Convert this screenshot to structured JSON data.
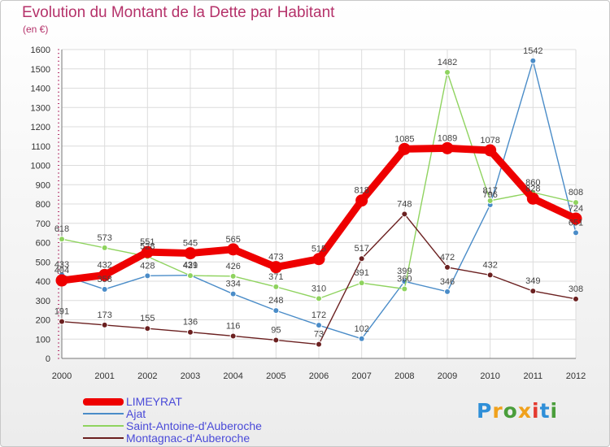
{
  "header": {
    "title": "Evolution du Montant de la Dette par Habitant",
    "subtitle": "(en €)"
  },
  "logo": {
    "text": "Proxiti",
    "colors": [
      "#2f8fd8",
      "#f0a11c",
      "#4a9e3b",
      "#f0a11c",
      "#e43a2f",
      "#2f8fd8",
      "#4a9e3b"
    ]
  },
  "chart_data": {
    "type": "line",
    "title": "Evolution du Montant de la Dette par Habitant",
    "ylabel": "(en €)",
    "x": [
      "2000",
      "2001",
      "2002",
      "2003",
      "2004",
      "2005",
      "2006",
      "2007",
      "2008",
      "2009",
      "2010",
      "2011",
      "2012"
    ],
    "ylim": [
      0,
      1600
    ],
    "yticks": [
      0,
      100,
      200,
      300,
      400,
      500,
      600,
      700,
      800,
      900,
      1000,
      1100,
      1200,
      1300,
      1400,
      1500,
      1600
    ],
    "grid": true,
    "legend_position": "bottom-left",
    "series": [
      {
        "name": "LIMEYRAT",
        "color": "#ee0000",
        "emphasis": true,
        "values": [
          404,
          432,
          551,
          545,
          565,
          473,
          515,
          818,
          1085,
          1089,
          1078,
          828,
          724
        ]
      },
      {
        "name": "Ajat",
        "color": "#4a8cc8",
        "values": [
          433,
          358,
          428,
          431,
          334,
          248,
          172,
          102,
          399,
          346,
          796,
          1542,
          651
        ]
      },
      {
        "name": "Saint-Antoine-d'Auberoche",
        "color": "#8fd35f",
        "values": [
          618,
          573,
          528,
          429,
          426,
          371,
          310,
          391,
          360,
          1482,
          817,
          860,
          808
        ]
      },
      {
        "name": "Montagnac-d'Auberoche",
        "color": "#6b2020",
        "values": [
          191,
          173,
          155,
          136,
          116,
          95,
          73,
          517,
          748,
          472,
          432,
          349,
          308
        ]
      }
    ]
  }
}
